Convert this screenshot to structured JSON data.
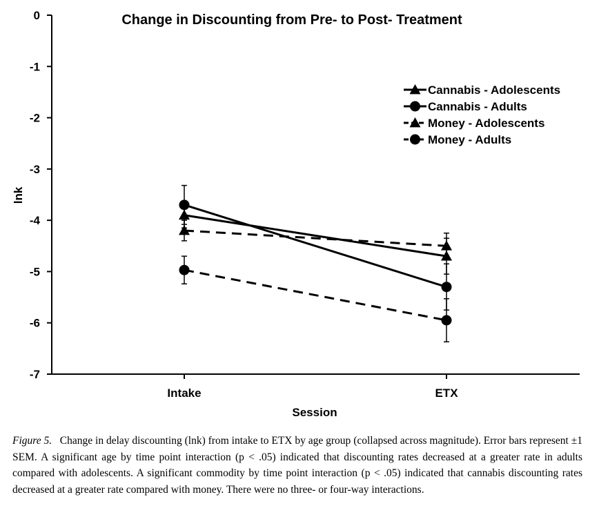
{
  "chart_data": {
    "type": "line",
    "title": "Change in Discounting from Pre- to Post- Treatment",
    "xlabel": "Session",
    "ylabel": "lnk",
    "categories": [
      "Intake",
      "ETX"
    ],
    "ylim": [
      -7,
      0
    ],
    "yticks": [
      0,
      -1,
      -2,
      -3,
      -4,
      -5,
      -6,
      -7
    ],
    "grid": false,
    "legend_position": "top-right",
    "series": [
      {
        "name": "Cannabis - Adolescents",
        "marker": "triangle",
        "dash": "solid",
        "values": [
          -3.9,
          -4.7
        ],
        "error": [
          0.25,
          0.35
        ]
      },
      {
        "name": "Cannabis - Adults",
        "marker": "circle",
        "dash": "solid",
        "values": [
          -3.7,
          -5.3
        ],
        "error": [
          0.38,
          0.45
        ]
      },
      {
        "name": "Money - Adolescents",
        "marker": "triangle",
        "dash": "dashed",
        "values": [
          -4.2,
          -4.5
        ],
        "error": [
          0.2,
          0.25
        ]
      },
      {
        "name": "Money - Adults",
        "marker": "circle",
        "dash": "dashed",
        "values": [
          -4.97,
          -5.95
        ],
        "error": [
          0.27,
          0.42
        ]
      }
    ]
  },
  "caption": {
    "label": "Figure 5.",
    "text": "Change in delay discounting (lnk) from intake to ETX by age group (collapsed across magnitude). Error bars represent ±1 SEM. A significant age by time point interaction (p < .05) indicated that discounting rates decreased at a greater rate in adults compared with adolescents. A significant commodity by time point interaction (p < .05) indicated that cannabis discounting rates decreased at a greater rate compared with money. There were no three- or four-way interactions."
  }
}
